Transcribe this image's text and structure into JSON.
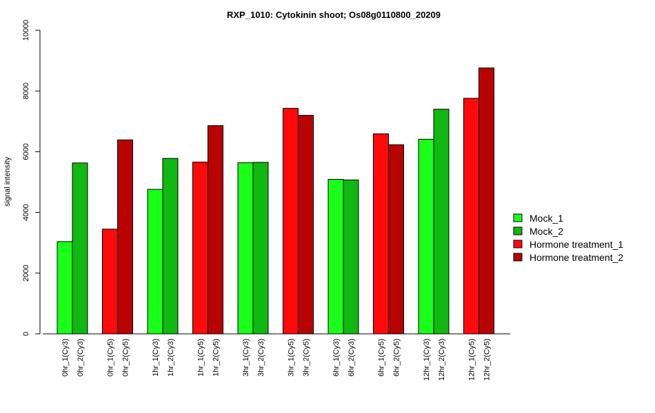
{
  "chart_data": {
    "type": "bar",
    "title": "RXP_1010: Cytokinin shoot; Os08g0110800_20209",
    "xlabel": "",
    "ylabel": "signal intensity",
    "ylim": [
      0,
      10000
    ],
    "yticks": [
      0,
      2000,
      4000,
      6000,
      8000,
      10000
    ],
    "legend_position": "right",
    "series_legend": [
      {
        "name": "Mock_1",
        "color": "#1aff1a"
      },
      {
        "name": "Mock_2",
        "color": "#11b811"
      },
      {
        "name": "Hormone treatment_1",
        "color": "#ff0a0a"
      },
      {
        "name": "Hormone treatment_2",
        "color": "#b80303"
      }
    ],
    "bars": [
      {
        "label": "0hr_1(Cy3)",
        "value": 3040,
        "series": "Mock_1"
      },
      {
        "label": "0hr_2(Cy3)",
        "value": 5630,
        "series": "Mock_2"
      },
      {
        "label": "0hr_1(Cy5)",
        "value": 3450,
        "series": "Hormone treatment_1"
      },
      {
        "label": "0hr_2(Cy5)",
        "value": 6390,
        "series": "Hormone treatment_2"
      },
      {
        "label": "1hr_1(Cy3)",
        "value": 4760,
        "series": "Mock_1"
      },
      {
        "label": "1hr_2(Cy3)",
        "value": 5780,
        "series": "Mock_2"
      },
      {
        "label": "1hr_1(Cy5)",
        "value": 5660,
        "series": "Hormone treatment_1"
      },
      {
        "label": "1hr_2(Cy5)",
        "value": 6860,
        "series": "Hormone treatment_2"
      },
      {
        "label": "3hr_1(Cy3)",
        "value": 5640,
        "series": "Mock_1"
      },
      {
        "label": "3hr_2(Cy3)",
        "value": 5650,
        "series": "Mock_2"
      },
      {
        "label": "3hr_1(Cy5)",
        "value": 7430,
        "series": "Hormone treatment_1"
      },
      {
        "label": "3hr_2(Cy5)",
        "value": 7200,
        "series": "Hormone treatment_2"
      },
      {
        "label": "6hr_1(Cy3)",
        "value": 5090,
        "series": "Mock_1"
      },
      {
        "label": "6hr_2(Cy3)",
        "value": 5070,
        "series": "Mock_2"
      },
      {
        "label": "6hr_1(Cy5)",
        "value": 6590,
        "series": "Hormone treatment_1"
      },
      {
        "label": "6hr_2(Cy5)",
        "value": 6230,
        "series": "Hormone treatment_2"
      },
      {
        "label": "12hr_1(Cy3)",
        "value": 6410,
        "series": "Mock_1"
      },
      {
        "label": "12hr_2(Cy3)",
        "value": 7400,
        "series": "Mock_2"
      },
      {
        "label": "12hr_1(Cy5)",
        "value": 7760,
        "series": "Hormone treatment_1"
      },
      {
        "label": "12hr_2(Cy5)",
        "value": 8760,
        "series": "Hormone treatment_2"
      }
    ]
  }
}
